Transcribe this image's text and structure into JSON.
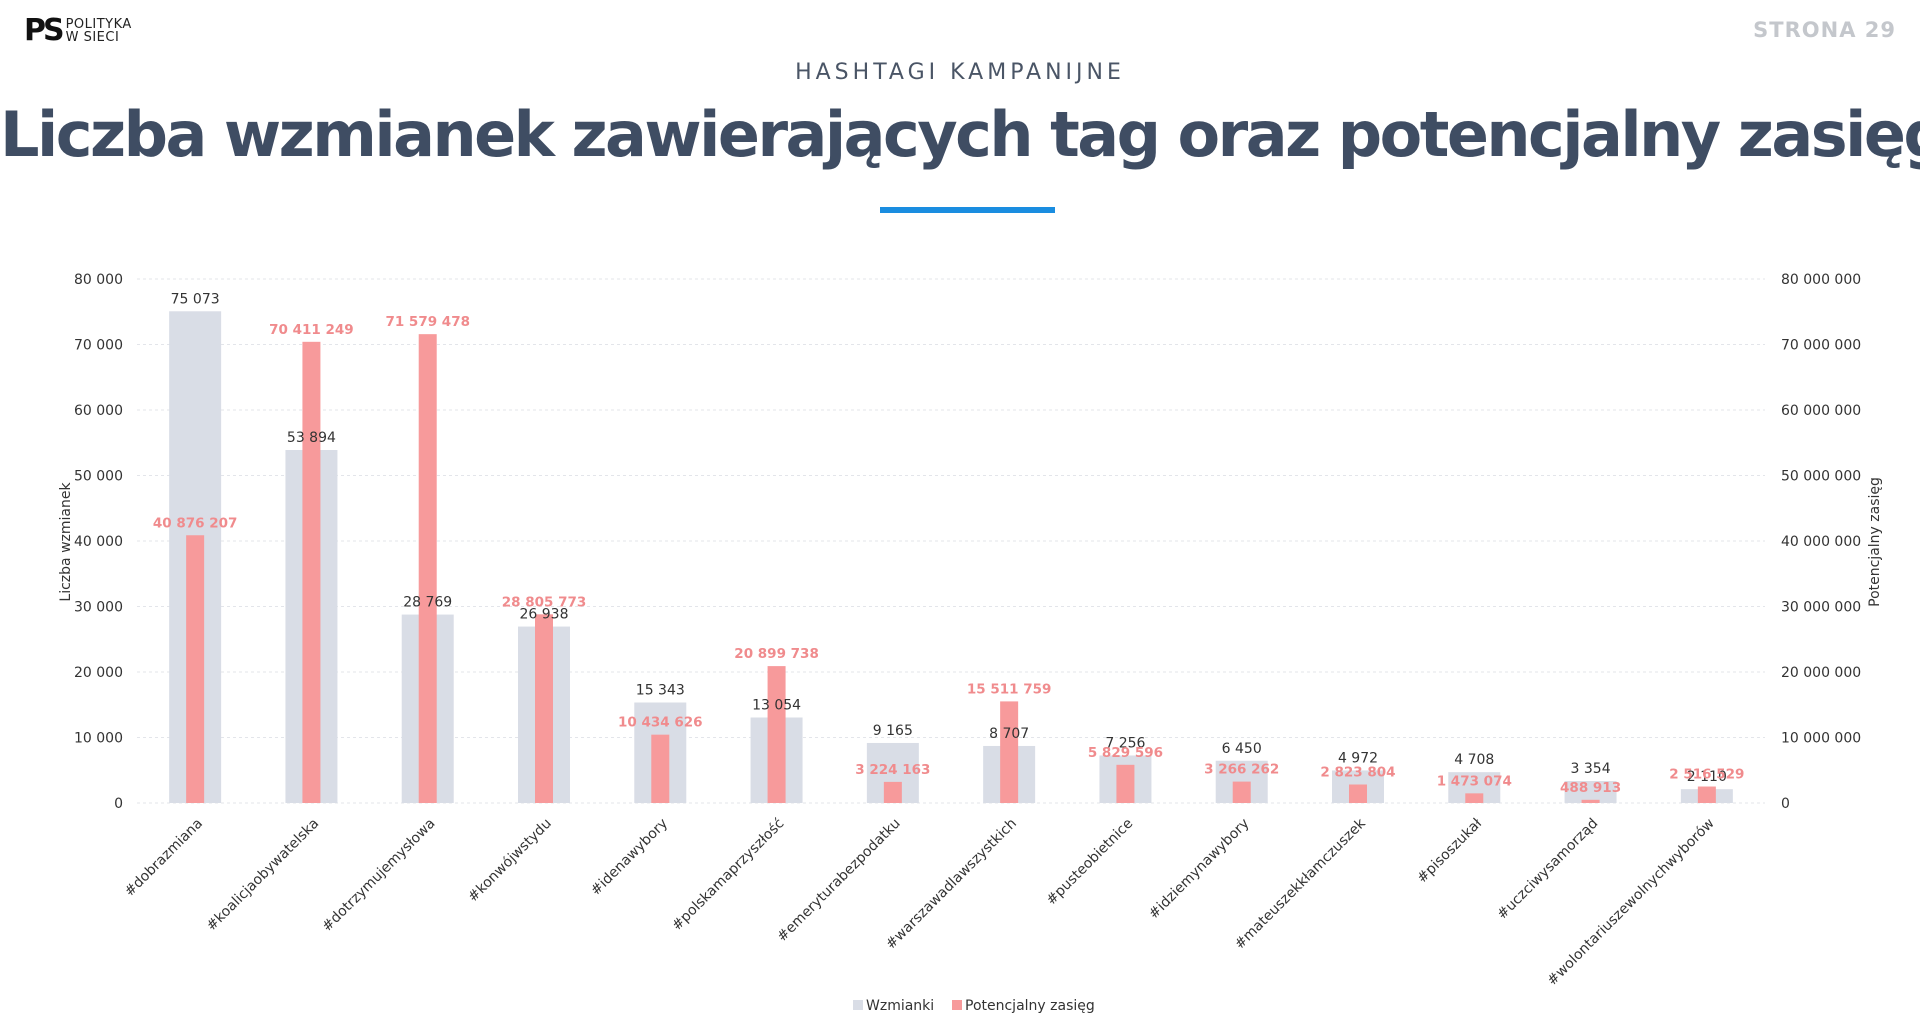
{
  "header": {
    "logo_mark": "PS",
    "logo_line1": "POLITYKA",
    "logo_line2": "W SIECI",
    "page_label": "STRONA  29",
    "subtitle": "HASHTAGI KAMPANIJNE",
    "title": "Liczba wzmianek zawierających tag oraz potencjalny zasięg"
  },
  "colors": {
    "mentions": "#d9dde6",
    "reach": "#f79a9b",
    "reach_label": "#f08b8d",
    "accent": "#1a8de0",
    "title": "#3f4d63"
  },
  "chart_data": {
    "type": "bar",
    "categories": [
      "#dobrazmiana",
      "#koalicjaobywatelska",
      "#dotrzymujemysłowa",
      "#konwójwstydu",
      "#idenawybory",
      "#polskamaprzyszłość",
      "#emeryturabezpodatku",
      "#warszawadlawszystkich",
      "#pusteobietnice",
      "#idziemynawybory",
      "#mateuszekkłamczuszek",
      "#pisoszukał",
      "#uczciwysamorząd",
      "#wolontariuszewolnychwyborów"
    ],
    "series": [
      {
        "name": "Wzmianki",
        "axis": "left",
        "values": [
          75073,
          53894,
          28769,
          26938,
          15343,
          13054,
          9165,
          8707,
          7256,
          6450,
          4972,
          4708,
          3354,
          2110
        ],
        "labels": [
          "75 073",
          "53 894",
          "28 769",
          "26 938",
          "15 343",
          "13 054",
          "9 165",
          "8 707",
          "7 256",
          "6 450",
          "4 972",
          "4 708",
          "3 354",
          "2 110"
        ]
      },
      {
        "name": "Potencjalny zasięg",
        "axis": "right",
        "values": [
          40876207,
          70411249,
          71579478,
          28805773,
          10434626,
          20899738,
          3224163,
          15511759,
          5829596,
          3266262,
          2823804,
          1473074,
          488913,
          2516529
        ],
        "labels": [
          "40 876 207",
          "70 411 249",
          "71 579 478",
          "28 805 773",
          "10 434 626",
          "20 899 738",
          "3 224 163",
          "15 511 759",
          "5 829 596",
          "3 266 262",
          "2 823 804",
          "1 473 074",
          "488 913",
          "2 516 529"
        ]
      }
    ],
    "ylabel": "Liczba wzmianek",
    "y2label": "Potencjalny zasięg",
    "ylim": [
      0,
      80000
    ],
    "y2lim": [
      0,
      80000000
    ],
    "yticks": [
      "0",
      "10 000",
      "20 000",
      "30 000",
      "40 000",
      "50 000",
      "60 000",
      "70 000",
      "80 000"
    ],
    "y2ticks": [
      "0",
      "10 000 000",
      "20 000 000",
      "30 000 000",
      "40 000 000",
      "50 000 000",
      "60 000 000",
      "70 000 000",
      "80 000 000"
    ],
    "grid": true,
    "legend_position": "bottom-center"
  }
}
